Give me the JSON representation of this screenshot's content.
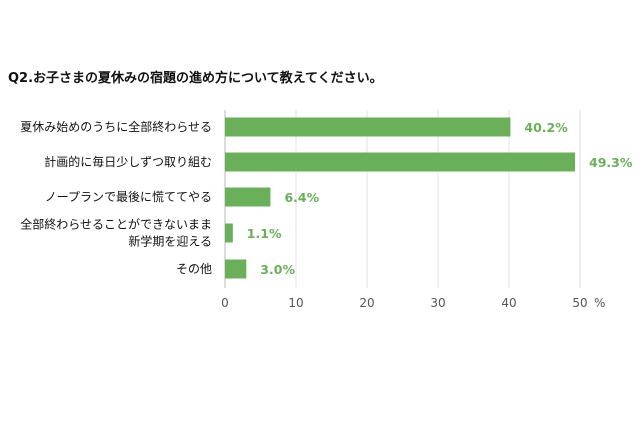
{
  "chart_data": {
    "type": "bar",
    "orientation": "horizontal",
    "title": "Q2.お子さまの夏休みの宿題の進め方について教えてください。",
    "categories": [
      [
        "夏休み始めのうちに全部終わらせる"
      ],
      [
        "計画的に毎日少しずつ取り組む"
      ],
      [
        "ノープランで最後に慌ててやる"
      ],
      [
        "全部終わらせることができないまま",
        "新学期を迎える"
      ],
      [
        "その他"
      ]
    ],
    "values": [
      40.2,
      49.3,
      6.4,
      1.1,
      3.0
    ],
    "data_labels": [
      "40.2%",
      "49.3%",
      "6.4%",
      "1.1%",
      "3.0%"
    ],
    "xlim": [
      0,
      50
    ],
    "xticks": [
      "0",
      "10",
      "20",
      "30",
      "40",
      "50"
    ],
    "x_unit": "%",
    "grid": true,
    "legend": "none",
    "bar_color": "#6aaf5a",
    "label_color": "#6aaf5a"
  }
}
